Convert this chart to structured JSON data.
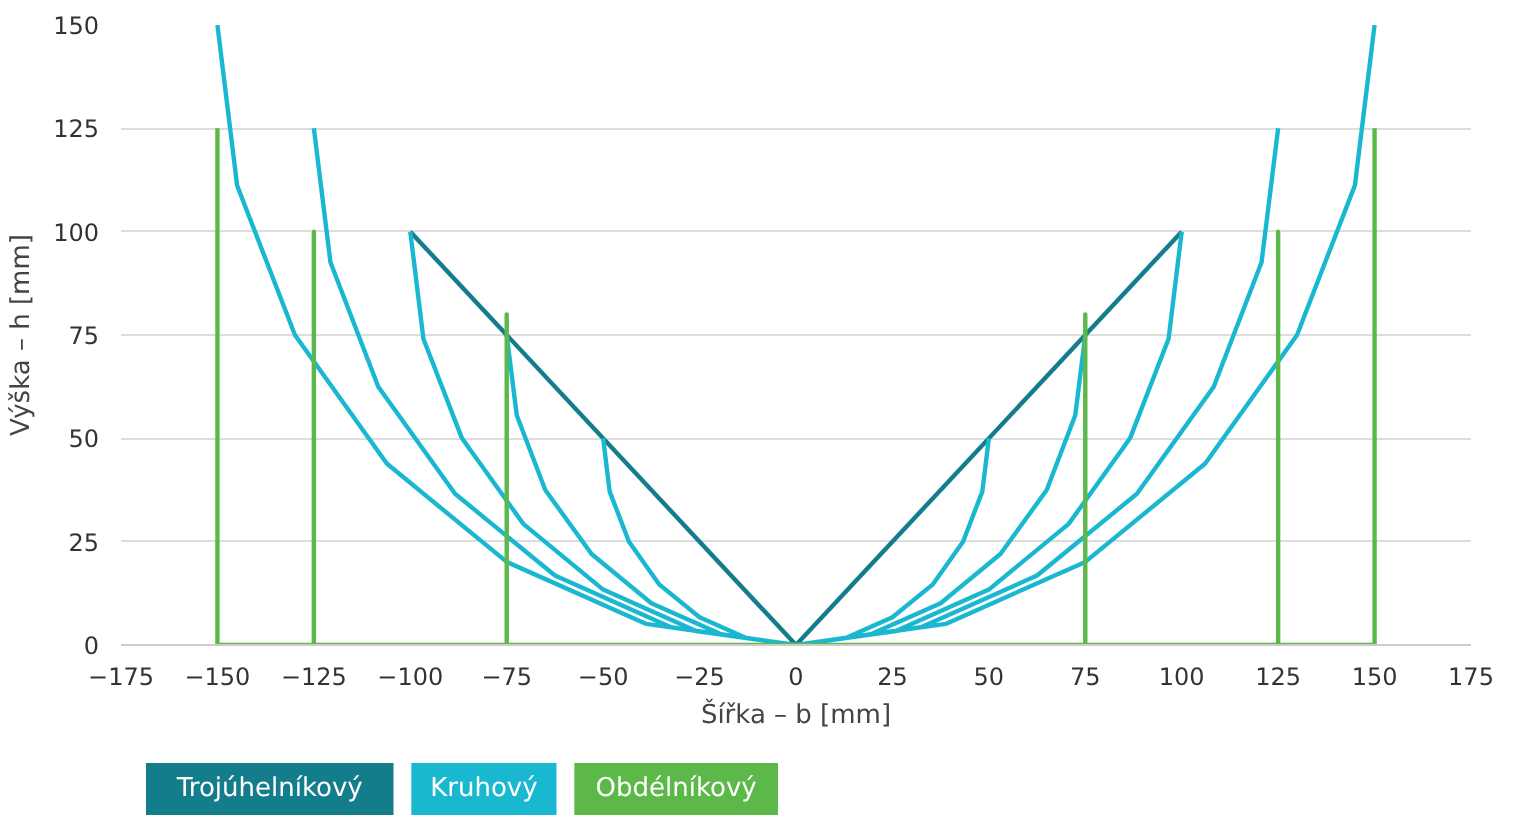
{
  "chart_data": {
    "type": "line",
    "xlabel": "Šířka – b [mm]",
    "ylabel": "Výška – h [mm]",
    "xlim": [
      -175,
      175
    ],
    "xticks": [
      -175,
      -150,
      -125,
      -100,
      -75,
      -50,
      -25,
      0,
      25,
      50,
      75,
      100,
      125,
      150,
      175
    ],
    "ylim": [
      0,
      150
    ],
    "yticks": [
      0,
      25,
      50,
      75,
      100,
      125,
      150
    ],
    "grid": "y",
    "legend": "bottom",
    "marker": "none",
    "line_style": "solid",
    "series": [
      {
        "name": "Trojúhelníkový",
        "color": "#137d8c",
        "x": [
          -100,
          0,
          100
        ],
        "values": [
          100,
          0,
          100
        ]
      },
      {
        "name": "Kruhový",
        "color": "#1ab8d0",
        "x": [
          -150,
          -144.9,
          -129.9,
          -106.1,
          -75,
          -38.8,
          0,
          38.8,
          75,
          106.1,
          129.9,
          144.9,
          150,
          null,
          -125,
          -120.7,
          -108.3,
          -88.4,
          -62.5,
          -32.4,
          0,
          32.4,
          62.5,
          88.4,
          108.3,
          120.7,
          125,
          null,
          -100,
          -96.6,
          -86.6,
          -70.7,
          -50,
          -25.9,
          0,
          25.9,
          50,
          70.7,
          86.6,
          96.6,
          100,
          null,
          -75,
          -72.4,
          -65,
          -53,
          -37.5,
          -19.4,
          0,
          19.4,
          37.5,
          53,
          65,
          72.4,
          75,
          null,
          -50,
          -48.3,
          -43.3,
          -35.4,
          -25,
          -12.9,
          0,
          12.9,
          25,
          35.4,
          43.3,
          48.3,
          50
        ],
        "values": [
          150,
          111.2,
          75,
          43.9,
          20.1,
          5.1,
          0,
          5.1,
          20.1,
          43.9,
          75,
          111.2,
          150,
          null,
          125,
          92.6,
          62.5,
          36.6,
          16.8,
          4.3,
          0,
          4.3,
          16.8,
          36.6,
          62.5,
          92.6,
          125,
          null,
          100,
          74.1,
          50,
          29.3,
          13.4,
          3.4,
          0,
          3.4,
          13.4,
          29.3,
          50,
          74.1,
          100,
          null,
          75,
          55.6,
          37.5,
          22,
          10.1,
          2.6,
          0,
          2.6,
          10.1,
          22,
          37.5,
          55.6,
          75,
          null,
          50,
          37.1,
          25,
          14.6,
          6.7,
          1.7,
          0,
          1.7,
          6.7,
          14.6,
          25,
          37.1,
          50
        ]
      },
      {
        "name": "Obdélníkový",
        "color": "#5db84a",
        "x": [
          -150,
          -150,
          -125,
          -125,
          -125,
          -75,
          -75,
          -75,
          75,
          75,
          75,
          125,
          125,
          125,
          150,
          150
        ],
        "values": [
          125,
          0,
          0,
          100,
          0,
          0,
          80,
          0,
          0,
          80,
          0,
          0,
          100,
          0,
          0,
          125
        ]
      }
    ]
  }
}
